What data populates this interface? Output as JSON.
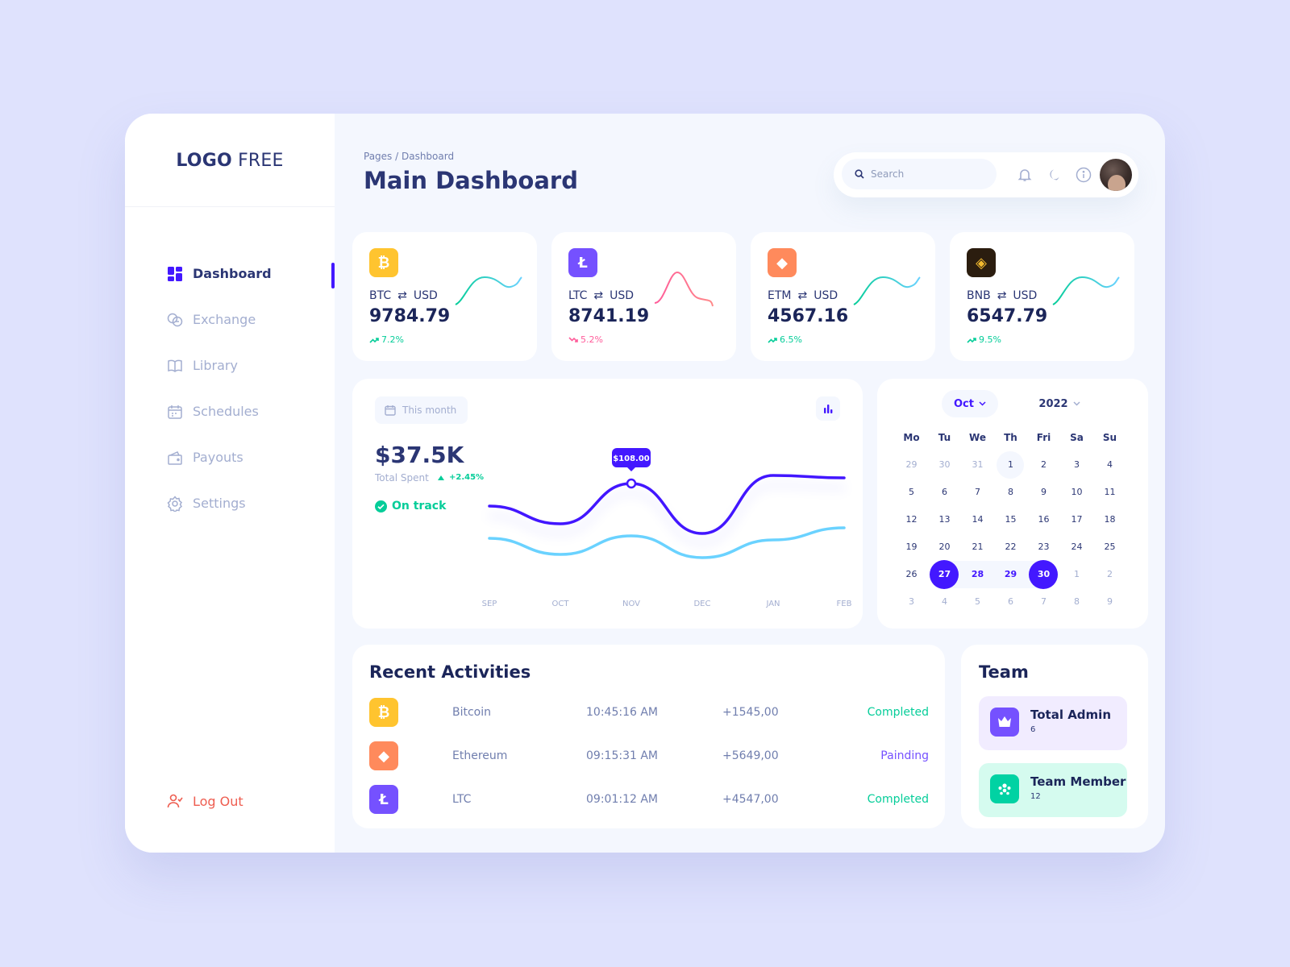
{
  "logo": {
    "bold": "LOGO",
    "light": "FREE"
  },
  "sidebar": {
    "items": [
      {
        "label": "Dashboard",
        "icon": "dashboard-grid-icon"
      },
      {
        "label": "Exchange",
        "icon": "exchange-coins-icon"
      },
      {
        "label": "Library",
        "icon": "book-icon"
      },
      {
        "label": "Schedules",
        "icon": "calendar-icon"
      },
      {
        "label": "Payouts",
        "icon": "wallet-icon"
      },
      {
        "label": "Settings",
        "icon": "gear-icon"
      }
    ],
    "active": "Dashboard",
    "logout_label": "Log Out"
  },
  "header": {
    "breadcrumb": "Pages / Dashboard",
    "title": "Main Dashboard",
    "search_placeholder": "Search"
  },
  "coins": [
    {
      "symbol": "BTC",
      "quote": "USD",
      "price": "9784.79",
      "change": "7.2%",
      "trend": "up",
      "color": "#ffc42f",
      "icon": "bitcoin-icon",
      "glyph": "₿"
    },
    {
      "symbol": "LTC",
      "quote": "USD",
      "price": "8741.19",
      "change": "5.2%",
      "trend": "down",
      "color": "#7551ff",
      "icon": "litecoin-icon",
      "glyph": "Ł"
    },
    {
      "symbol": "ETM",
      "quote": "USD",
      "price": "4567.16",
      "change": "6.5%",
      "trend": "up",
      "color": "#ff8a5c",
      "icon": "ethereum-icon",
      "glyph": "◆"
    },
    {
      "symbol": "BNB",
      "quote": "USD",
      "price": "6547.79",
      "change": "9.5%",
      "trend": "up",
      "color": "#2b1d0f",
      "icon": "binance-icon",
      "glyph": "◈"
    }
  ],
  "spending": {
    "period": "This month",
    "total": "$37.5K",
    "total_label": "Total Spent",
    "change": "+2.45%",
    "status": "On track",
    "tooltip": "$108.00"
  },
  "chart_data": {
    "type": "line",
    "categories": [
      "SEP",
      "OCT",
      "NOV",
      "DEC",
      "JAN",
      "FEB"
    ],
    "series": [
      {
        "values": [
          0.62,
          0.4,
          0.9,
          0.28,
          1.0,
          0.97
        ],
        "color": "#4318ff"
      },
      {
        "values": [
          0.22,
          0.02,
          0.25,
          -0.02,
          0.2,
          0.35
        ],
        "color": "#6ad2ff"
      }
    ],
    "highlight": {
      "category": "NOV",
      "label": "$108.00"
    },
    "grid": false,
    "ylim": [
      -0.2,
      1.2
    ]
  },
  "calendar": {
    "month": "Oct",
    "year": "2022",
    "weekdays": [
      "Mo",
      "Tu",
      "We",
      "Th",
      "Fri",
      "Sa",
      "Su"
    ],
    "weeks": [
      [
        "29",
        "30",
        "31",
        "1",
        "2",
        "3",
        "4"
      ],
      [
        "5",
        "6",
        "7",
        "8",
        "9",
        "10",
        "11"
      ],
      [
        "12",
        "13",
        "14",
        "15",
        "16",
        "17",
        "18"
      ],
      [
        "19",
        "20",
        "21",
        "22",
        "23",
        "24",
        "25"
      ],
      [
        "26",
        "27",
        "28",
        "29",
        "30",
        "1",
        "2"
      ],
      [
        "3",
        "4",
        "5",
        "6",
        "7",
        "8",
        "9"
      ]
    ],
    "today": "1",
    "range_start": "27",
    "range_end": "30"
  },
  "activities": {
    "title": "Recent Activities",
    "rows": [
      {
        "name": "Bitcoin",
        "time": "10:45:16 AM",
        "amount": "+1545,00",
        "status": "Completed",
        "status_color": "#05cd99",
        "icon": "bitcoin-icon",
        "color": "#ffc42f",
        "glyph": "₿"
      },
      {
        "name": "Ethereum",
        "time": "09:15:31 AM",
        "amount": "+5649,00",
        "status": "Painding",
        "status_color": "#7551ff",
        "icon": "ethereum-icon",
        "color": "#ff8a5c",
        "glyph": "◆"
      },
      {
        "name": "LTC",
        "time": "09:01:12 AM",
        "amount": "+4547,00",
        "status": "Completed",
        "status_color": "#05cd99",
        "icon": "litecoin-icon",
        "color": "#7551ff",
        "glyph": "Ł"
      }
    ]
  },
  "team": {
    "title": "Team",
    "items": [
      {
        "name": "Total Admin",
        "count": "6",
        "bg": "#f1ecff",
        "icon_bg": "#7551ff",
        "icon": "crown-icon"
      },
      {
        "name": "Team Member",
        "count": "12",
        "bg": "#d5fbef",
        "icon_bg": "#01d2a3",
        "icon": "team-group-icon"
      }
    ]
  },
  "colors": {
    "accent": "#4318ff",
    "green": "#05cd99",
    "red": "#ee5d50",
    "pink": "#ff5c9a"
  }
}
